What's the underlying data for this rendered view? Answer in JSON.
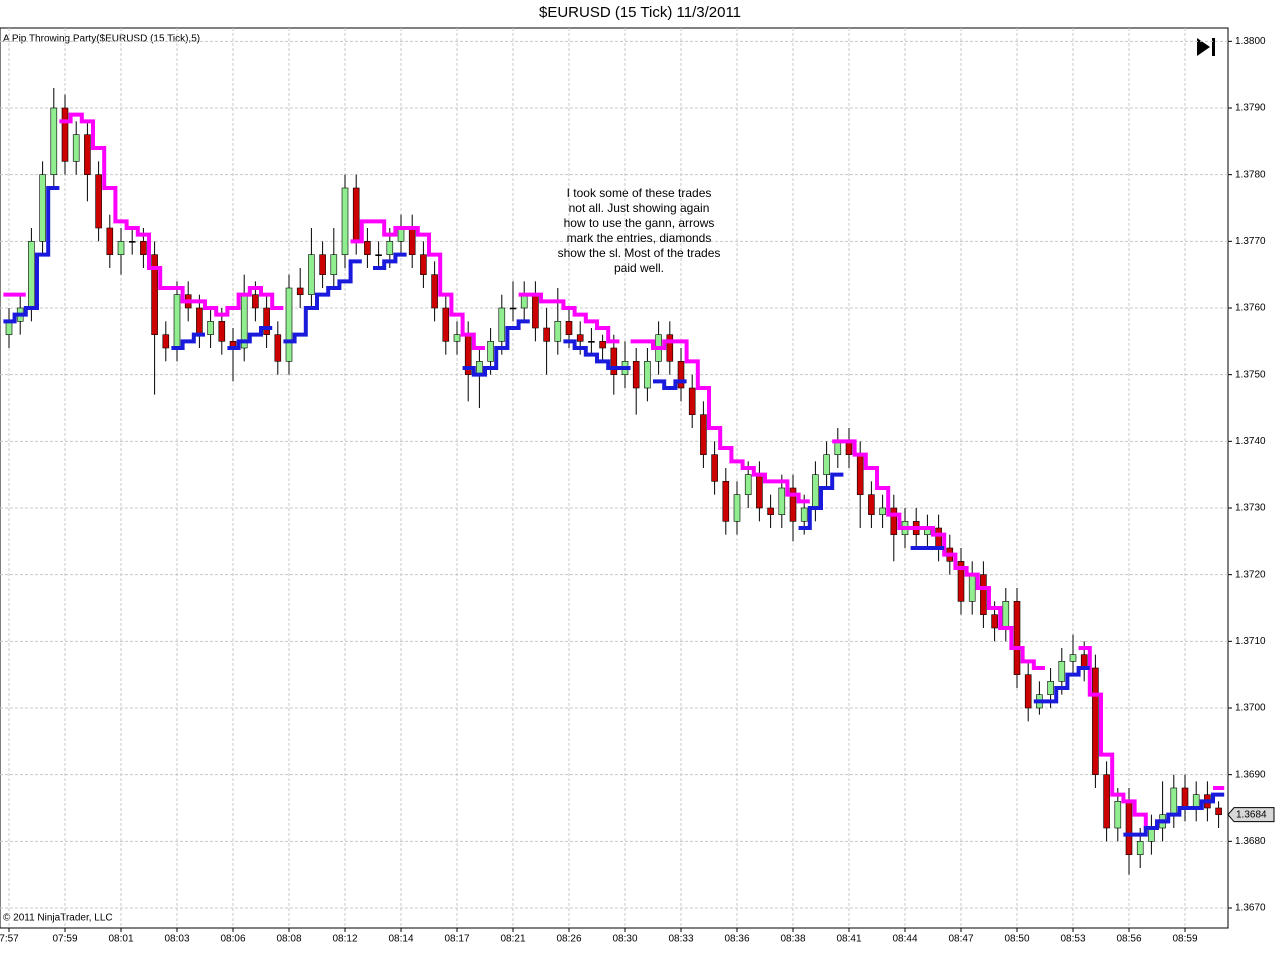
{
  "chart_data": {
    "type": "candlestick",
    "title": "$EURUSD (15 Tick)  11/3/2011",
    "indicator_label": "A Pip Throwing Party($EURUSD (15 Tick),5)",
    "copyright": "© 2011 NinjaTrader, LLC",
    "annotation": [
      "I took some of these trades",
      "not all.  Just showing again",
      "how to use the gann, arrows",
      "mark the entries, diamonds",
      "show the sl.  Most of the trades",
      "paid well."
    ],
    "last_price": {
      "value": 1.3684,
      "label": "1.3684"
    },
    "ylim": [
      1.3667,
      1.3802
    ],
    "yticks": [
      {
        "value": 1.367,
        "label": "1.3670"
      },
      {
        "value": 1.368,
        "label": "1.3680"
      },
      {
        "value": 1.369,
        "label": "1.3690"
      },
      {
        "value": 1.37,
        "label": "1.3700"
      },
      {
        "value": 1.371,
        "label": "1.3710"
      },
      {
        "value": 1.372,
        "label": "1.3720"
      },
      {
        "value": 1.373,
        "label": "1.3730"
      },
      {
        "value": 1.374,
        "label": "1.3740"
      },
      {
        "value": 1.375,
        "label": "1.3750"
      },
      {
        "value": 1.376,
        "label": "1.3760"
      },
      {
        "value": 1.377,
        "label": "1.3770"
      },
      {
        "value": 1.378,
        "label": "1.3780"
      },
      {
        "value": 1.379,
        "label": "1.3790"
      },
      {
        "value": 1.38,
        "label": "1.3800"
      }
    ],
    "grid": true,
    "categories": [
      "7:57",
      null,
      null,
      null,
      null,
      "07:59",
      null,
      null,
      null,
      null,
      "08:01",
      null,
      null,
      null,
      null,
      "08:03",
      null,
      null,
      null,
      null,
      "08:06",
      null,
      null,
      null,
      null,
      "08:08",
      null,
      null,
      null,
      null,
      "08:12",
      null,
      null,
      null,
      null,
      "08:14",
      null,
      null,
      null,
      null,
      "08:17",
      null,
      null,
      null,
      null,
      "08:21",
      null,
      null,
      null,
      null,
      "08:26",
      null,
      null,
      null,
      null,
      "08:30",
      null,
      null,
      null,
      null,
      "08:33",
      null,
      null,
      null,
      null,
      "08:36",
      null,
      null,
      null,
      null,
      "08:38",
      null,
      null,
      null,
      null,
      "08:41",
      null,
      null,
      null,
      null,
      "08:44",
      null,
      null,
      null,
      null,
      "08:47",
      null,
      null,
      null,
      null,
      "08:50",
      null,
      null,
      null,
      null,
      "08:53",
      null,
      null,
      null,
      null,
      "08:56",
      null,
      null,
      null,
      null,
      "08:59",
      null,
      null,
      null
    ],
    "up_color": "#90ee90",
    "down_color": "#cc0000",
    "open": [
      1.3756,
      1.3758,
      1.376,
      1.377,
      1.378,
      1.379,
      1.3782,
      1.3786,
      1.378,
      1.3772,
      1.3768,
      1.377,
      1.377,
      1.3768,
      1.3756,
      1.3754,
      1.3762,
      1.376,
      1.3756,
      1.3758,
      1.3755,
      1.3754,
      1.3762,
      1.376,
      1.3756,
      1.3752,
      1.3763,
      1.3762,
      1.3768,
      1.3765,
      1.3768,
      1.3778,
      1.377,
      1.3768,
      1.3768,
      1.377,
      1.3772,
      1.3768,
      1.3765,
      1.376,
      1.3755,
      1.3756,
      1.375,
      1.3752,
      1.3755,
      1.376,
      1.376,
      1.3762,
      1.3757,
      1.3755,
      1.3758,
      1.3756,
      1.3755,
      1.3755,
      1.3754,
      1.375,
      1.3752,
      1.3748,
      1.3752,
      1.3756,
      1.3752,
      1.3748,
      1.3744,
      1.3738,
      1.3734,
      1.3728,
      1.3732,
      1.3735,
      1.373,
      1.3729,
      1.3733,
      1.3728,
      1.373,
      1.3735,
      1.3738,
      1.374,
      1.3738,
      1.3732,
      1.3729,
      1.373,
      1.3726,
      1.3728,
      1.3726,
      1.3727,
      1.3724,
      1.3722,
      1.3716,
      1.372,
      1.3714,
      1.3712,
      1.3716,
      1.3705,
      1.37,
      1.3702,
      1.3704,
      1.3707,
      1.3708,
      1.3706,
      1.369,
      1.3682,
      1.3686,
      1.3678,
      1.368,
      1.3682,
      1.3684,
      1.3688,
      1.3685,
      1.3687,
      1.3685
    ],
    "high": [
      1.376,
      1.3762,
      1.3772,
      1.3782,
      1.3793,
      1.3792,
      1.3788,
      1.3788,
      1.3782,
      1.3774,
      1.3772,
      1.3772,
      1.3772,
      1.377,
      1.3758,
      1.3764,
      1.3764,
      1.3762,
      1.376,
      1.376,
      1.3757,
      1.3765,
      1.3764,
      1.3762,
      1.3758,
      1.3765,
      1.3766,
      1.3772,
      1.377,
      1.3772,
      1.378,
      1.378,
      1.3772,
      1.377,
      1.3772,
      1.3774,
      1.3774,
      1.377,
      1.3767,
      1.3762,
      1.3758,
      1.3758,
      1.3754,
      1.3757,
      1.3762,
      1.3764,
      1.3764,
      1.3764,
      1.376,
      1.3763,
      1.376,
      1.3758,
      1.3757,
      1.3756,
      1.3756,
      1.3755,
      1.3754,
      1.3754,
      1.3758,
      1.3758,
      1.3754,
      1.375,
      1.3746,
      1.374,
      1.3736,
      1.3734,
      1.3737,
      1.3737,
      1.3732,
      1.3735,
      1.3735,
      1.3732,
      1.3737,
      1.374,
      1.3742,
      1.3742,
      1.374,
      1.3734,
      1.3732,
      1.3732,
      1.373,
      1.373,
      1.3729,
      1.3729,
      1.3726,
      1.3724,
      1.3722,
      1.3722,
      1.3716,
      1.3718,
      1.3718,
      1.3707,
      1.3704,
      1.3706,
      1.3709,
      1.3711,
      1.371,
      1.3708,
      1.3692,
      1.3688,
      1.3688,
      1.3682,
      1.3684,
      1.3689,
      1.369,
      1.369,
      1.3689,
      1.3689,
      1.3686
    ],
    "low": [
      1.3754,
      1.3756,
      1.3758,
      1.3768,
      1.3778,
      1.378,
      1.378,
      1.3776,
      1.377,
      1.3766,
      1.3765,
      1.3768,
      1.3766,
      1.3747,
      1.3752,
      1.3752,
      1.3758,
      1.3754,
      1.3754,
      1.3753,
      1.3749,
      1.3752,
      1.3758,
      1.3754,
      1.375,
      1.375,
      1.376,
      1.376,
      1.3763,
      1.3763,
      1.3766,
      1.3768,
      1.3766,
      1.3766,
      1.3766,
      1.3768,
      1.3766,
      1.3763,
      1.3758,
      1.3753,
      1.3753,
      1.3746,
      1.3745,
      1.375,
      1.3753,
      1.3758,
      1.3758,
      1.3755,
      1.375,
      1.3753,
      1.3754,
      1.3753,
      1.3753,
      1.3752,
      1.3747,
      1.3748,
      1.3744,
      1.3746,
      1.375,
      1.375,
      1.3746,
      1.3742,
      1.3736,
      1.3732,
      1.3726,
      1.3726,
      1.373,
      1.3728,
      1.3727,
      1.3727,
      1.3725,
      1.3726,
      1.3728,
      1.3733,
      1.3736,
      1.3736,
      1.3727,
      1.3727,
      1.3727,
      1.3722,
      1.3724,
      1.3724,
      1.3724,
      1.3722,
      1.372,
      1.3714,
      1.3714,
      1.3712,
      1.371,
      1.371,
      1.3703,
      1.3698,
      1.3699,
      1.37,
      1.3702,
      1.3705,
      1.3704,
      1.3688,
      1.368,
      1.368,
      1.3675,
      1.3676,
      1.3678,
      1.368,
      1.3682,
      1.3683,
      1.3683,
      1.3683,
      1.3682
    ],
    "close": [
      1.3758,
      1.376,
      1.377,
      1.378,
      1.379,
      1.3782,
      1.3786,
      1.378,
      1.3772,
      1.3768,
      1.377,
      1.377,
      1.3768,
      1.3756,
      1.3754,
      1.3762,
      1.376,
      1.3756,
      1.3758,
      1.3755,
      1.3754,
      1.3762,
      1.376,
      1.3756,
      1.3752,
      1.3763,
      1.3762,
      1.3768,
      1.3765,
      1.3768,
      1.3778,
      1.377,
      1.3768,
      1.3768,
      1.377,
      1.3772,
      1.3768,
      1.3765,
      1.376,
      1.3755,
      1.3756,
      1.375,
      1.3752,
      1.3755,
      1.376,
      1.376,
      1.3762,
      1.3757,
      1.3755,
      1.3758,
      1.3756,
      1.3755,
      1.3755,
      1.3754,
      1.375,
      1.3752,
      1.3748,
      1.3752,
      1.3756,
      1.3752,
      1.3748,
      1.3744,
      1.3738,
      1.3734,
      1.3728,
      1.3732,
      1.3735,
      1.373,
      1.3729,
      1.3733,
      1.3728,
      1.373,
      1.3735,
      1.3738,
      1.374,
      1.3738,
      1.3732,
      1.3729,
      1.373,
      1.3726,
      1.3728,
      1.3726,
      1.3727,
      1.3724,
      1.3722,
      1.3716,
      1.372,
      1.3714,
      1.3712,
      1.3716,
      1.3705,
      1.37,
      1.3702,
      1.3704,
      1.3707,
      1.3708,
      1.3706,
      1.369,
      1.3682,
      1.3686,
      1.3678,
      1.368,
      1.3682,
      1.3684,
      1.3688,
      1.3685,
      1.3687,
      1.3685,
      1.3684
    ],
    "series": [
      {
        "color": "#ff00ff",
        "values": [
          1.3762,
          1.3762,
          null,
          null,
          null,
          1.3788,
          1.3789,
          1.3788,
          1.3784,
          1.3778,
          1.3773,
          1.3772,
          1.3771,
          1.3766,
          1.3763,
          1.3763,
          1.3761,
          1.3761,
          1.376,
          1.3759,
          1.376,
          1.3762,
          1.3763,
          1.3762,
          1.376,
          null,
          null,
          null,
          null,
          null,
          null,
          1.377,
          1.3773,
          1.3773,
          1.3771,
          1.3772,
          1.3772,
          1.3771,
          1.3768,
          1.3762,
          1.3759,
          1.3756,
          1.3754,
          null,
          null,
          null,
          1.3762,
          1.3762,
          1.3761,
          1.3761,
          1.376,
          1.3759,
          1.3758,
          1.3757,
          1.3755,
          null,
          1.3755,
          1.3755,
          1.3754,
          1.3755,
          1.3755,
          1.3752,
          1.3748,
          1.3742,
          1.3739,
          1.3737,
          1.3736,
          1.3735,
          1.3734,
          1.3734,
          1.3732,
          1.3731,
          null,
          null,
          1.374,
          1.374,
          1.3738,
          1.3736,
          1.3733,
          1.3729,
          1.3727,
          1.3727,
          1.3727,
          1.3726,
          1.3723,
          1.3721,
          1.372,
          1.3718,
          1.3715,
          1.3712,
          1.3709,
          1.3707,
          1.3706,
          null,
          null,
          null,
          1.3709,
          1.3702,
          1.3693,
          1.3687,
          1.3686,
          1.3684,
          1.3682,
          1.3683,
          null,
          null,
          null,
          null,
          1.3688
        ]
      },
      {
        "color": "#1a1adc",
        "values": [
          1.3758,
          1.3759,
          1.376,
          1.3768,
          1.3778,
          null,
          null,
          null,
          null,
          null,
          null,
          null,
          null,
          null,
          null,
          1.3754,
          1.3755,
          1.3756,
          null,
          null,
          1.3754,
          1.3755,
          1.3756,
          1.3757,
          null,
          1.3755,
          1.3756,
          1.376,
          1.3762,
          1.3763,
          1.3764,
          1.3767,
          null,
          1.3766,
          1.3767,
          1.3768,
          null,
          null,
          null,
          null,
          null,
          1.3751,
          1.375,
          1.3751,
          1.3754,
          1.3757,
          1.3758,
          null,
          null,
          null,
          1.3755,
          1.3754,
          1.3753,
          1.3752,
          1.3751,
          1.3751,
          null,
          null,
          1.3749,
          1.3748,
          1.3749,
          null,
          null,
          null,
          null,
          null,
          null,
          null,
          null,
          null,
          null,
          1.3727,
          1.373,
          1.3733,
          1.3735,
          null,
          null,
          null,
          null,
          null,
          null,
          1.3724,
          1.3724,
          1.3724,
          null,
          null,
          null,
          null,
          null,
          null,
          null,
          null,
          1.3701,
          1.3701,
          1.3703,
          1.3705,
          1.3706,
          null,
          null,
          null,
          1.3681,
          1.3681,
          1.3682,
          1.3683,
          1.3684,
          1.3685,
          1.3685,
          1.3686,
          1.3687
        ]
      }
    ]
  }
}
